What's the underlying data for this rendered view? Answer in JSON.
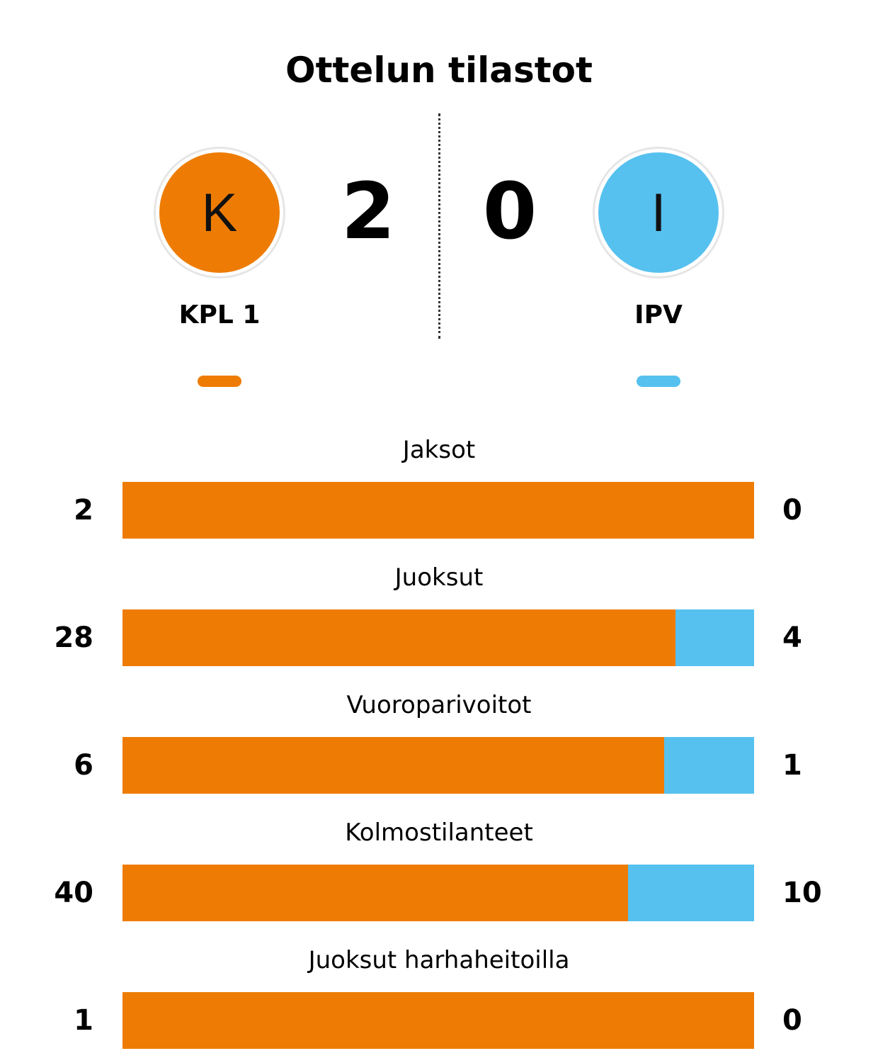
{
  "title": "Ottelun tilastot",
  "colors": {
    "home": "#EE7C04",
    "away": "#56C1EF"
  },
  "home": {
    "initial": "K",
    "score": "2",
    "name": "KPL 1"
  },
  "away": {
    "initial": "I",
    "score": "0",
    "name": "IPV"
  },
  "stats": [
    {
      "label": "Jaksot",
      "home": 2,
      "away": 0
    },
    {
      "label": "Juoksut",
      "home": 28,
      "away": 4
    },
    {
      "label": "Vuoroparivoitot",
      "home": 6,
      "away": 1
    },
    {
      "label": "Kolmostilanteet",
      "home": 40,
      "away": 10
    },
    {
      "label": "Juoksut harhaheitoilla",
      "home": 1,
      "away": 0
    }
  ]
}
